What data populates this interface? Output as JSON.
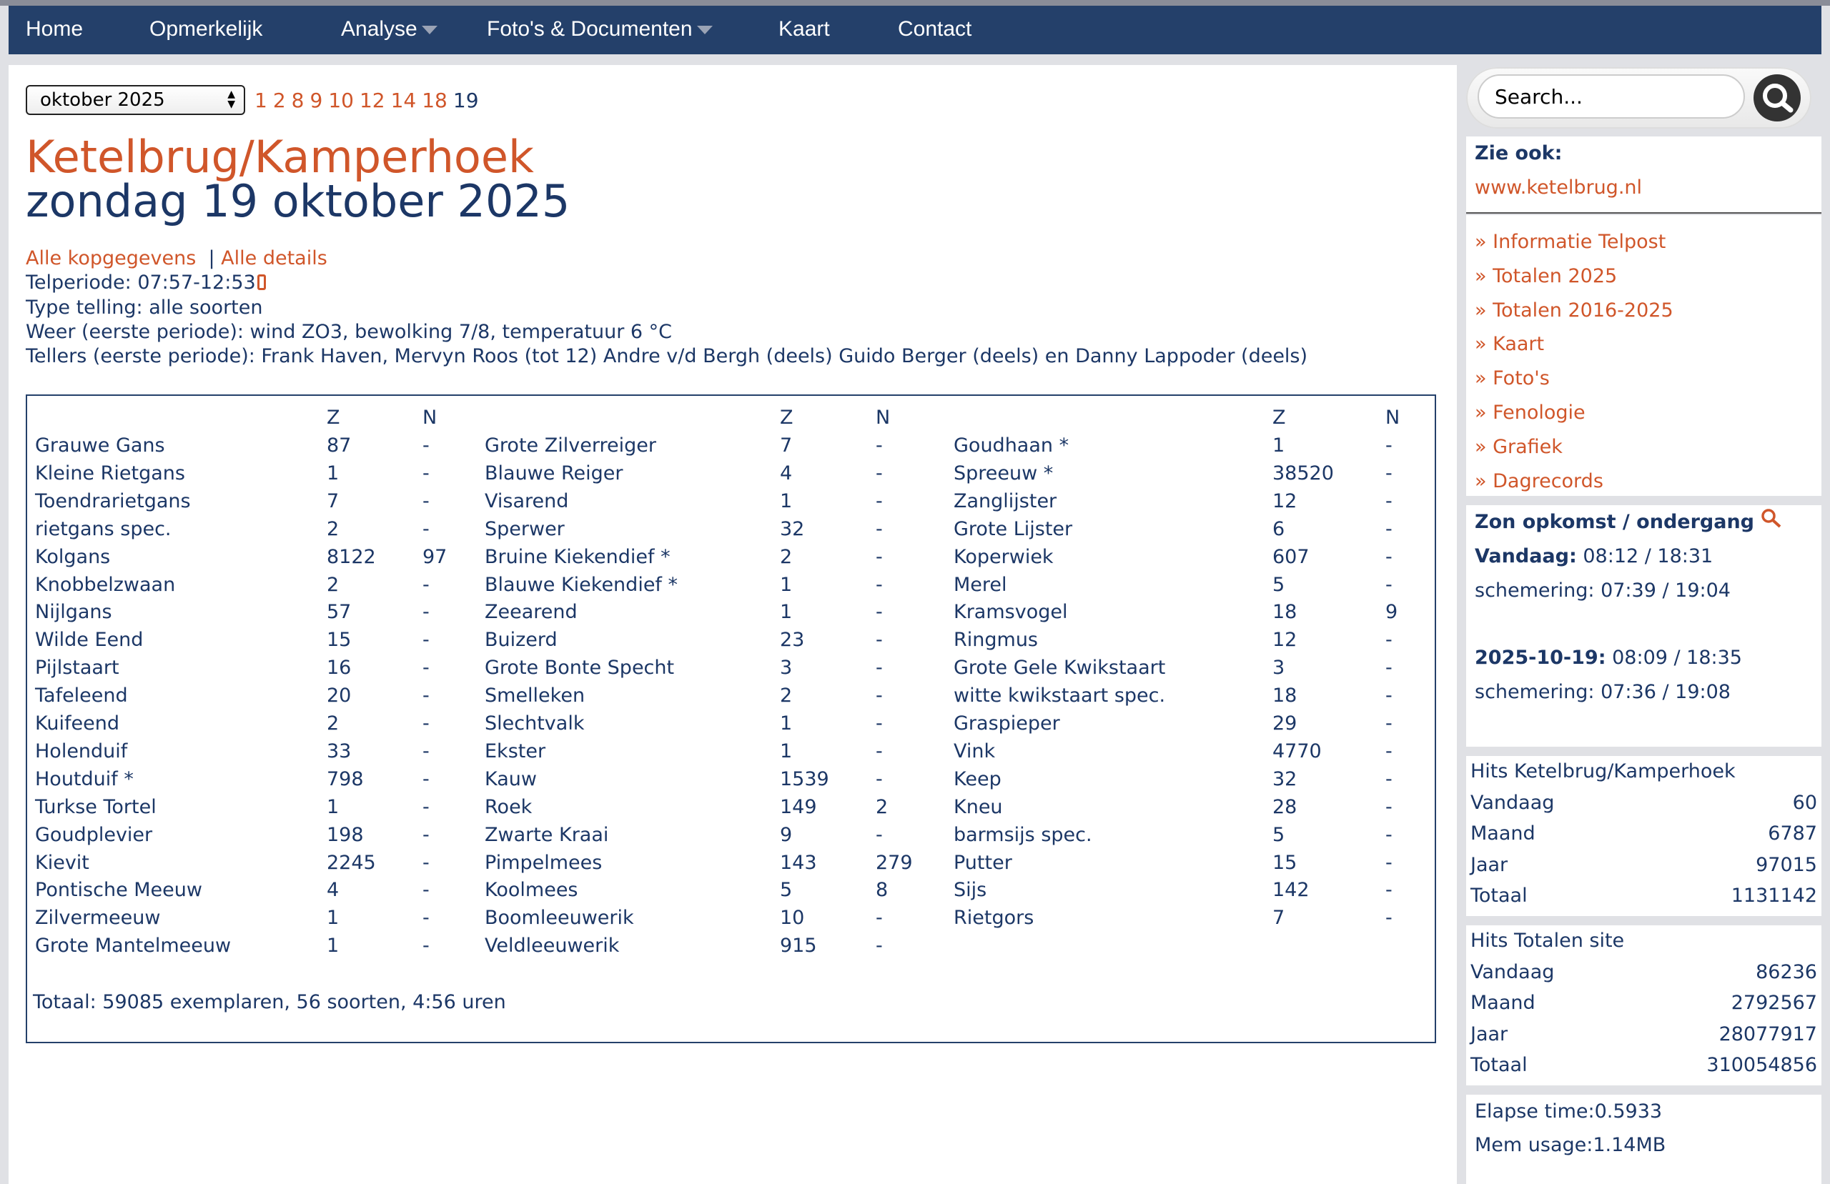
{
  "nav": {
    "items": [
      {
        "label": "Home",
        "dropdown": false
      },
      {
        "label": "Opmerkelijk",
        "dropdown": false
      },
      {
        "label": "Analyse",
        "dropdown": true
      },
      {
        "label": "Foto's & Documenten",
        "dropdown": true
      },
      {
        "label": "Kaart",
        "dropdown": false
      },
      {
        "label": "Contact",
        "dropdown": false
      }
    ]
  },
  "month_select": {
    "value": "oktober 2025"
  },
  "day_links": [
    "1",
    "2",
    "8",
    "9",
    "10",
    "12",
    "14",
    "18"
  ],
  "current_day": "19",
  "header": {
    "location": "Ketelbrug/Kamperhoek",
    "date": "zondag 19 oktober 2025"
  },
  "info": {
    "link_kopgegevens": "Alle kopgegevens",
    "separator": "|",
    "link_details": "Alle details",
    "telperiode": "Telperiode: 07:57-12:53",
    "type": "Type telling: alle soorten",
    "weer": "Weer (eerste periode): wind ZO3, bewolking 7/8, temperatuur 6 °C",
    "tellers": "Tellers (eerste periode): Frank Haven, Mervyn Roos (tot 12) Andre v/d Bergh (deels) Guido Berger (deels) en Danny Lappoder (deels)"
  },
  "table": {
    "col_z": "Z",
    "col_n": "N",
    "columns": [
      [
        [
          "Grauwe Gans",
          "87",
          "-"
        ],
        [
          "Kleine Rietgans",
          "1",
          "-"
        ],
        [
          "Toendrarietgans",
          "7",
          "-"
        ],
        [
          "rietgans spec.",
          "2",
          "-"
        ],
        [
          "Kolgans",
          "8122",
          "97"
        ],
        [
          "Knobbelzwaan",
          "2",
          "-"
        ],
        [
          "Nijlgans",
          "57",
          "-"
        ],
        [
          "Wilde Eend",
          "15",
          "-"
        ],
        [
          "Pijlstaart",
          "16",
          "-"
        ],
        [
          "Tafeleend",
          "20",
          "-"
        ],
        [
          "Kuifeend",
          "2",
          "-"
        ],
        [
          "Holenduif",
          "33",
          "-"
        ],
        [
          "Houtduif *",
          "798",
          "-"
        ],
        [
          "Turkse Tortel",
          "1",
          "-"
        ],
        [
          "Goudplevier",
          "198",
          "-"
        ],
        [
          "Kievit",
          "2245",
          "-"
        ],
        [
          "Pontische Meeuw",
          "4",
          "-"
        ],
        [
          "Zilvermeeuw",
          "1",
          "-"
        ],
        [
          "Grote Mantelmeeuw",
          "1",
          "-"
        ]
      ],
      [
        [
          "Grote Zilverreiger",
          "7",
          "-"
        ],
        [
          "Blauwe Reiger",
          "4",
          "-"
        ],
        [
          "Visarend",
          "1",
          "-"
        ],
        [
          "Sperwer",
          "32",
          "-"
        ],
        [
          "Bruine Kiekendief *",
          "2",
          "-"
        ],
        [
          "Blauwe Kiekendief *",
          "1",
          "-"
        ],
        [
          "Zeearend",
          "1",
          "-"
        ],
        [
          "Buizerd",
          "23",
          "-"
        ],
        [
          "Grote Bonte Specht",
          "3",
          "-"
        ],
        [
          "Smelleken",
          "2",
          "-"
        ],
        [
          "Slechtvalk",
          "1",
          "-"
        ],
        [
          "Ekster",
          "1",
          "-"
        ],
        [
          "Kauw",
          "1539",
          "-"
        ],
        [
          "Roek",
          "149",
          "2"
        ],
        [
          "Zwarte Kraai",
          "9",
          "-"
        ],
        [
          "Pimpelmees",
          "143",
          "279"
        ],
        [
          "Koolmees",
          "5",
          "8"
        ],
        [
          "Boomleeuwerik",
          "10",
          "-"
        ],
        [
          "Veldleeuwerik",
          "915",
          "-"
        ]
      ],
      [
        [
          "Goudhaan *",
          "1",
          "-"
        ],
        [
          "Spreeuw *",
          "38520",
          "-"
        ],
        [
          "Zanglijster",
          "12",
          "-"
        ],
        [
          "Grote Lijster",
          "6",
          "-"
        ],
        [
          "Koperwiek",
          "607",
          "-"
        ],
        [
          "Merel",
          "5",
          "-"
        ],
        [
          "Kramsvogel",
          "18",
          "9"
        ],
        [
          "Ringmus",
          "12",
          "-"
        ],
        [
          "Grote Gele Kwikstaart",
          "3",
          "-"
        ],
        [
          "witte kwikstaart spec.",
          "18",
          "-"
        ],
        [
          "Graspieper",
          "29",
          "-"
        ],
        [
          "Vink",
          "4770",
          "-"
        ],
        [
          "Keep",
          "32",
          "-"
        ],
        [
          "Kneu",
          "28",
          "-"
        ],
        [
          "barmsijs spec.",
          "5",
          "-"
        ],
        [
          "Putter",
          "15",
          "-"
        ],
        [
          "Sijs",
          "142",
          "-"
        ],
        [
          "Rietgors",
          "7",
          "-"
        ]
      ]
    ],
    "totaal": "Totaal: 59085 exemplaren, 56 soorten, 4:56 uren"
  },
  "sidebar": {
    "search_placeholder": "Search...",
    "zie_ook_label": "Zie ook:",
    "zie_ook_link": "www.ketelbrug.nl",
    "links": [
      "» Informatie Telpost",
      "» Totalen 2025",
      "» Totalen 2016-2025",
      "» Kaart",
      "» Foto's",
      "» Fenologie",
      "» Grafiek",
      "» Dagrecords"
    ],
    "sun": {
      "title": "Zon opkomst / ondergang",
      "today_label": "Vandaag:",
      "today_value": "08:12 / 18:31",
      "today_twilight": "schemering: 07:39 / 19:04",
      "date_label": "2025-10-19:",
      "date_value": "08:09 / 18:35",
      "date_twilight": "schemering: 07:36 / 19:08"
    },
    "hits_local": {
      "title": "Hits Ketelbrug/Kamperhoek",
      "rows": [
        [
          "Vandaag",
          "60"
        ],
        [
          "Maand",
          "6787"
        ],
        [
          "Jaar",
          "97015"
        ],
        [
          "Totaal",
          "1131142"
        ]
      ]
    },
    "hits_site": {
      "title": "Hits Totalen site",
      "rows": [
        [
          "Vandaag",
          "86236"
        ],
        [
          "Maand",
          "2792567"
        ],
        [
          "Jaar",
          "28077917"
        ],
        [
          "Totaal",
          "310054856"
        ]
      ]
    },
    "elapse": "Elapse time:0.5933",
    "mem": "Mem usage:1.14MB"
  },
  "colors": {
    "nav_bg": "#24406a",
    "accent": "#d0562a",
    "text": "#1c3766",
    "page_bg": "#e0e1e5"
  }
}
